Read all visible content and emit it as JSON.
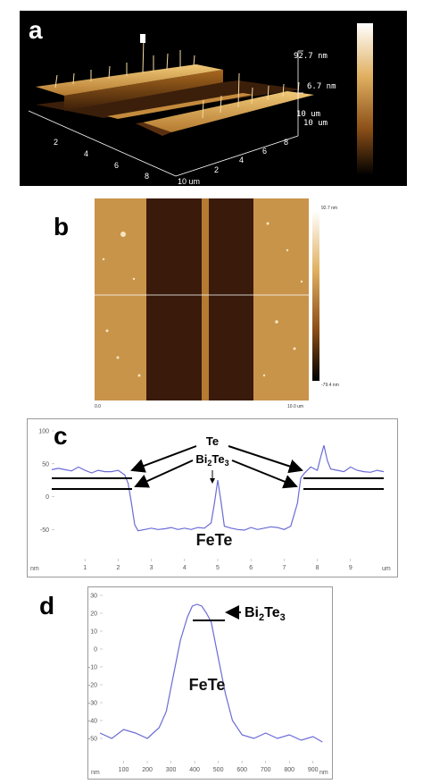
{
  "panel_a": {
    "letter": "a",
    "z_top": "92.7 nm",
    "z_mid": "6.7 nm",
    "corner_a": "10 um",
    "corner_b": "10 um",
    "x_ticks": [
      "2",
      "4",
      "6",
      "8"
    ],
    "x_end": "10 um",
    "y_ticks": [
      "2",
      "4",
      "6",
      "8"
    ],
    "y_end": "10"
  },
  "panel_b": {
    "letter": "b",
    "scale_top": "92.7 nm",
    "scale_bottom": "-79.4 nm",
    "x_start": "0.0",
    "x_end": "10.0 um"
  },
  "panel_c": {
    "letter": "c",
    "chart_data": {
      "type": "line",
      "title": "",
      "xlabel": "um",
      "ylabel": "nm",
      "x_unit": "um",
      "y_unit": "nm",
      "xlim": [
        0,
        10
      ],
      "ylim": [
        -85,
        100
      ],
      "xticks": [
        1,
        2,
        3,
        4,
        5,
        6,
        7,
        8,
        9
      ],
      "yticks": [
        100,
        50,
        0,
        -50
      ],
      "x": [
        0.0,
        0.2,
        0.4,
        0.6,
        0.8,
        1.0,
        1.2,
        1.4,
        1.6,
        1.8,
        2.0,
        2.2,
        2.3,
        2.4,
        2.5,
        2.6,
        2.8,
        3.0,
        3.2,
        3.4,
        3.6,
        3.8,
        4.0,
        4.2,
        4.4,
        4.6,
        4.8,
        4.9,
        5.0,
        5.1,
        5.2,
        5.4,
        5.6,
        5.8,
        6.0,
        6.2,
        6.4,
        6.6,
        6.8,
        7.0,
        7.2,
        7.4,
        7.5,
        7.6,
        7.7,
        7.8,
        8.0,
        8.1,
        8.2,
        8.3,
        8.4,
        8.6,
        8.8,
        9.0,
        9.2,
        9.4,
        9.6,
        9.8,
        10.0
      ],
      "y": [
        41,
        43,
        41,
        39,
        45,
        40,
        36,
        40,
        38,
        38,
        40,
        33,
        20,
        -10,
        -43,
        -52,
        -50,
        -48,
        -50,
        -49,
        -47,
        -50,
        -48,
        -50,
        -47,
        -48,
        -40,
        -10,
        25,
        -8,
        -45,
        -48,
        -50,
        -51,
        -47,
        -50,
        -48,
        -46,
        -47,
        -50,
        -45,
        -10,
        28,
        35,
        40,
        45,
        40,
        60,
        78,
        55,
        42,
        40,
        38,
        45,
        40,
        38,
        37,
        40,
        38
      ],
      "annotations": [
        {
          "text": "Te",
          "x": 5.0,
          "y": 70
        },
        {
          "text": "Bi2Te3",
          "x": 5.0,
          "y": 48
        },
        {
          "text": "FeTe",
          "x": 5.0,
          "y": -62
        }
      ]
    },
    "labels": {
      "te": "Te",
      "bi": "Bi",
      "sub2": "2",
      "te3": "Te",
      "sub3": "3",
      "fete": "FeTe",
      "y_unit": "nm",
      "x_unit": "um",
      "x_ticks": [
        "1",
        "2",
        "3",
        "4",
        "5",
        "6",
        "7",
        "8",
        "9"
      ],
      "y_ticks": [
        "100",
        "50",
        "0",
        "-50"
      ]
    }
  },
  "panel_d": {
    "letter": "d",
    "chart_data": {
      "type": "line",
      "title": "",
      "xlabel": "nm",
      "ylabel": "nm",
      "xlim": [
        0,
        950
      ],
      "ylim": [
        -60,
        30
      ],
      "xticks": [
        100,
        200,
        300,
        400,
        500,
        600,
        700,
        800,
        900
      ],
      "yticks": [
        30,
        20,
        10,
        0,
        -10,
        -20,
        -30,
        -40,
        -50
      ],
      "x": [
        0,
        50,
        100,
        150,
        200,
        250,
        280,
        310,
        340,
        370,
        390,
        410,
        430,
        450,
        470,
        500,
        530,
        560,
        600,
        650,
        700,
        750,
        800,
        850,
        900,
        940
      ],
      "y": [
        -47,
        -50,
        -45,
        -47,
        -50,
        -44,
        -35,
        -15,
        5,
        18,
        24,
        25,
        24,
        20,
        15,
        -5,
        -25,
        -40,
        -48,
        -50,
        -47,
        -50,
        -48,
        -51,
        -49,
        -52
      ],
      "annotations": [
        {
          "text": "Bi2Te3",
          "x": 560,
          "y": 22
        },
        {
          "text": "FeTe",
          "x": 410,
          "y": -10
        }
      ]
    },
    "labels": {
      "bi": "Bi",
      "sub2": "2",
      "te3": "Te",
      "sub3": "3",
      "fete": "FeTe",
      "y_unit": "nm",
      "x_unit": "nm",
      "x_ticks": [
        "100",
        "200",
        "300",
        "400",
        "500",
        "600",
        "700",
        "800",
        "900"
      ],
      "y_ticks": [
        "30",
        "20",
        "10",
        "0",
        "-10",
        "-20",
        "-30",
        "-40",
        "-50"
      ]
    }
  },
  "colors": {
    "afm_dark": "#2a1608",
    "afm_mid": "#8a4e17",
    "afm_light": "#d9a24a",
    "trace": "#6b6bd6",
    "axis": "#888888"
  }
}
